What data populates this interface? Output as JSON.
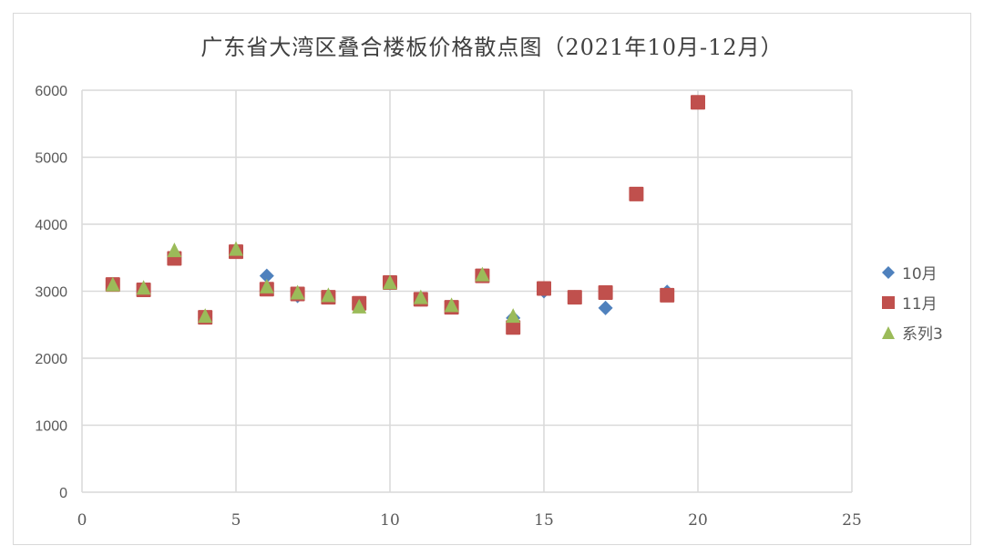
{
  "chart_data": {
    "type": "scatter",
    "title": "广东省大湾区叠合楼板价格散点图（2021年10月-12月）",
    "xlabel": "",
    "ylabel": "",
    "xlim": [
      0,
      25
    ],
    "ylim": [
      0,
      6000
    ],
    "x_ticks": [
      "0",
      "5",
      "10",
      "15",
      "20",
      "25"
    ],
    "y_ticks": [
      "0",
      "1000",
      "2000",
      "3000",
      "4000",
      "5000",
      "6000"
    ],
    "grid": true,
    "legend_position": "right",
    "series": [
      {
        "name": "10月",
        "marker": "diamond",
        "color": "#4f81bd",
        "points": [
          [
            1,
            3100
          ],
          [
            2,
            3020
          ],
          [
            3,
            3500
          ],
          [
            4,
            2610
          ],
          [
            5,
            3590
          ],
          [
            6,
            3230
          ],
          [
            7,
            2930
          ],
          [
            8,
            2910
          ],
          [
            9,
            2820
          ],
          [
            10,
            3120
          ],
          [
            11,
            2880
          ],
          [
            12,
            2760
          ],
          [
            13,
            3230
          ],
          [
            14,
            2600
          ],
          [
            15,
            3000
          ],
          [
            16,
            2910
          ],
          [
            17,
            2750
          ],
          [
            19,
            2990
          ]
        ]
      },
      {
        "name": "11月",
        "marker": "square",
        "color": "#c0504d",
        "points": [
          [
            1,
            3100
          ],
          [
            2,
            3020
          ],
          [
            3,
            3490
          ],
          [
            4,
            2610
          ],
          [
            5,
            3590
          ],
          [
            6,
            3030
          ],
          [
            7,
            2960
          ],
          [
            8,
            2910
          ],
          [
            9,
            2820
          ],
          [
            10,
            3130
          ],
          [
            11,
            2880
          ],
          [
            12,
            2760
          ],
          [
            13,
            3230
          ],
          [
            14,
            2460
          ],
          [
            15,
            3040
          ],
          [
            16,
            2910
          ],
          [
            17,
            2980
          ],
          [
            18,
            4450
          ],
          [
            19,
            2940
          ],
          [
            20,
            5820
          ]
        ]
      },
      {
        "name": "系列3",
        "marker": "triangle",
        "color": "#9bbb59",
        "points": [
          [
            1,
            3080
          ],
          [
            2,
            3030
          ],
          [
            3,
            3590
          ],
          [
            4,
            2610
          ],
          [
            5,
            3610
          ],
          [
            6,
            3050
          ],
          [
            7,
            2960
          ],
          [
            8,
            2920
          ],
          [
            9,
            2750
          ],
          [
            10,
            3110
          ],
          [
            11,
            2890
          ],
          [
            12,
            2770
          ],
          [
            13,
            3230
          ],
          [
            14,
            2610
          ]
        ]
      }
    ]
  },
  "legend": {
    "items": [
      {
        "label": "10月",
        "icon": "diamond-icon",
        "color": "#4f81bd"
      },
      {
        "label": "11月",
        "icon": "square-icon",
        "color": "#c0504d"
      },
      {
        "label": "系列3",
        "icon": "triangle-icon",
        "color": "#9bbb59"
      }
    ]
  }
}
